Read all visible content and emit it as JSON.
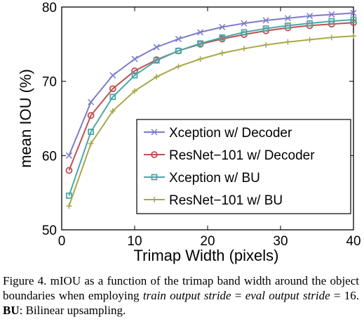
{
  "chart_data": {
    "type": "line",
    "xlabel": "Trimap Width (pixels)",
    "ylabel": "mean IOU (%)",
    "xlim": [
      0,
      40
    ],
    "ylim": [
      50,
      80
    ],
    "xticks": [
      0,
      10,
      20,
      30,
      40
    ],
    "yticks": [
      50,
      60,
      70,
      80
    ],
    "grid": false,
    "legend_position": "bottom-right",
    "x": [
      1,
      4,
      7,
      10,
      13,
      16,
      19,
      22,
      25,
      28,
      31,
      34,
      37,
      40
    ],
    "series": [
      {
        "name": "Xception w/ Decoder",
        "color": "#7b7bc8",
        "marker": "x",
        "values": [
          60.0,
          67.2,
          70.8,
          73.0,
          74.6,
          75.7,
          76.6,
          77.3,
          77.8,
          78.2,
          78.5,
          78.8,
          79.0,
          79.2
        ]
      },
      {
        "name": "ResNet−101 w/ Decoder",
        "color": "#c05050",
        "marker": "circle",
        "values": [
          58.0,
          65.4,
          69.0,
          71.4,
          72.9,
          74.1,
          75.0,
          75.7,
          76.3,
          76.8,
          77.2,
          77.5,
          77.7,
          77.9
        ]
      },
      {
        "name": "Xception w/ BU",
        "color": "#4aa8a8",
        "marker": "square",
        "values": [
          54.6,
          63.2,
          67.9,
          70.8,
          72.8,
          74.1,
          75.1,
          75.9,
          76.6,
          77.1,
          77.5,
          77.8,
          78.1,
          78.3
        ]
      },
      {
        "name": "ResNet−101 w/ BU",
        "color": "#a8a84a",
        "marker": "plus",
        "values": [
          53.2,
          61.6,
          66.0,
          68.7,
          70.6,
          72.0,
          73.0,
          73.8,
          74.4,
          74.9,
          75.3,
          75.6,
          75.9,
          76.1
        ]
      }
    ]
  },
  "caption": {
    "part1": "Figure 4. mIOU as a function of the trimap band width around the object boundaries when employing ",
    "italic1": "train output stride",
    "eq1": " = ",
    "italic2": "eval output stride",
    "part2": " = 16. ",
    "bold1": "BU",
    "part3": ": Bilinear upsampling."
  }
}
